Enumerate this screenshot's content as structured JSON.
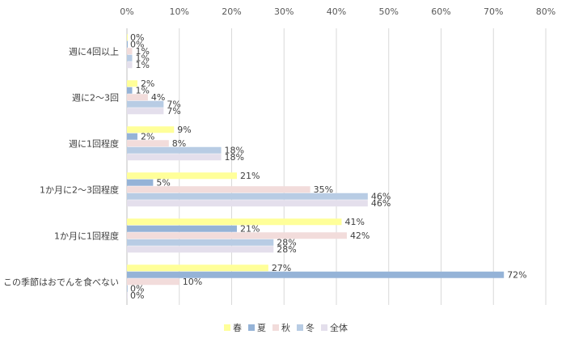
{
  "chart_data": {
    "type": "bar",
    "orientation": "horizontal",
    "title": "",
    "xlabel": "",
    "ylabel": "",
    "xlim": [
      0,
      80
    ],
    "x_ticks": [
      "0%",
      "10%",
      "20%",
      "30%",
      "40%",
      "50%",
      "60%",
      "70%",
      "80%"
    ],
    "grid": true,
    "legend_position": "bottom",
    "categories": [
      "週に4回以上",
      "週に2～3回",
      "週に1回程度",
      "1か月に2～3回程度",
      "1か月に1回程度",
      "この季節はおでんを食べない"
    ],
    "series": [
      {
        "name": "春",
        "color": "#FFFF99",
        "values": [
          0,
          2,
          9,
          21,
          41,
          27
        ]
      },
      {
        "name": "夏",
        "color": "#95B3D7",
        "values": [
          0,
          1,
          2,
          5,
          21,
          72
        ]
      },
      {
        "name": "秋",
        "color": "#F2DCDB",
        "values": [
          1,
          4,
          8,
          35,
          42,
          10
        ]
      },
      {
        "name": "冬",
        "color": "#B8CCE4",
        "values": [
          1,
          7,
          18,
          46,
          28,
          0
        ]
      },
      {
        "name": "全体",
        "color": "#E4DFEC",
        "values": [
          1,
          7,
          18,
          46,
          28,
          0
        ]
      }
    ],
    "data_labels": [
      [
        "0%",
        "0%",
        "1%",
        "1%",
        "1%"
      ],
      [
        "2%",
        "1%",
        "4%",
        "7%",
        "7%"
      ],
      [
        "9%",
        "2%",
        "8%",
        "18%",
        "18%"
      ],
      [
        "21%",
        "5%",
        "35%",
        "46%",
        "46%"
      ],
      [
        "41%",
        "21%",
        "42%",
        "28%",
        "28%"
      ],
      [
        "27%",
        "72%",
        "10%",
        "0%",
        "0%"
      ]
    ]
  }
}
